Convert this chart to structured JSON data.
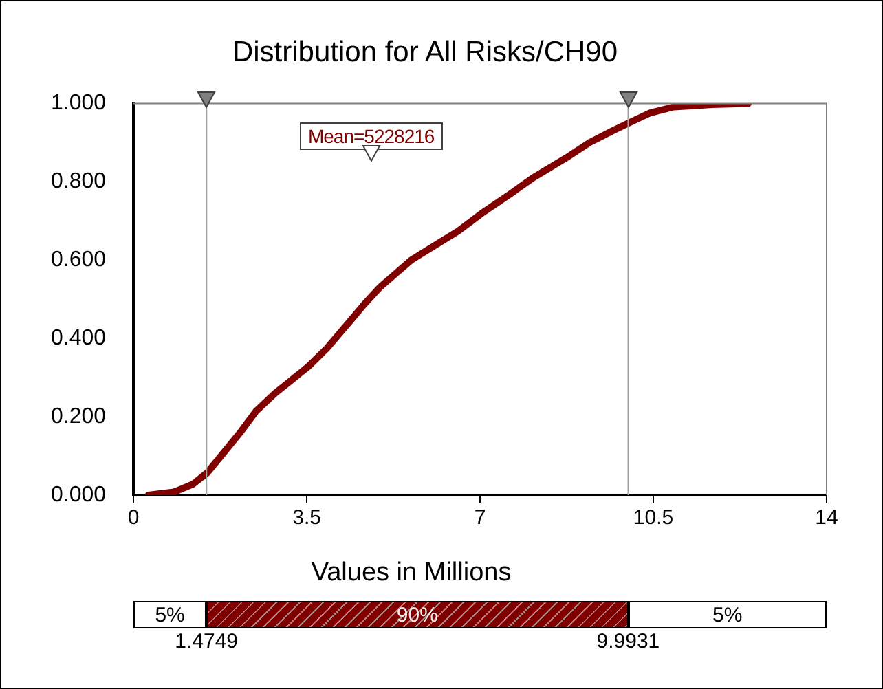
{
  "chart_data": {
    "type": "line",
    "title": "Distribution for All Risks/CH90",
    "xlabel": "Values in Millions",
    "x": [
      0.3,
      0.82,
      1.2,
      1.49,
      1.82,
      2.15,
      2.48,
      2.86,
      3.53,
      3.9,
      4.28,
      4.66,
      4.99,
      5.61,
      6.08,
      6.56,
      7.03,
      7.6,
      8.07,
      8.74,
      9.21,
      9.69,
      10.02,
      10.44,
      10.91,
      11.68,
      12.42
    ],
    "series": [
      {
        "color": "#800000",
        "values": [
          0,
          0.008,
          0.028,
          0.057,
          0.108,
          0.159,
          0.215,
          0.26,
          0.328,
          0.374,
          0.43,
          0.487,
          0.532,
          0.6,
          0.637,
          0.674,
          0.719,
          0.768,
          0.81,
          0.861,
          0.9,
          0.931,
          0.951,
          0.976,
          0.991,
          0.997,
          1.0
        ]
      }
    ],
    "xlim": [
      0,
      14
    ],
    "xticks": [
      0,
      3.5,
      7,
      10.5,
      14
    ],
    "ylim": [
      0,
      1
    ],
    "yticks": [
      {
        "value": 0,
        "label": "0.000"
      },
      {
        "value": 0.2,
        "label": "0.200"
      },
      {
        "value": 0.4,
        "label": "0.400"
      },
      {
        "value": 0.6,
        "label": "0.600"
      },
      {
        "value": 0.8,
        "label": "0.800"
      },
      {
        "value": 1,
        "label": "1.000"
      }
    ],
    "grid": false,
    "legend": false,
    "marker": "none",
    "ref_lines": [
      {
        "axis": "x",
        "value": 1.4749,
        "color": "#a0a0a0"
      },
      {
        "axis": "x",
        "value": 9.9931,
        "color": "#a0a0a0"
      }
    ],
    "annotations": [
      "Mean=5228216",
      "5%",
      "90%",
      "5%",
      "1.4749",
      "9.9931"
    ]
  }
}
